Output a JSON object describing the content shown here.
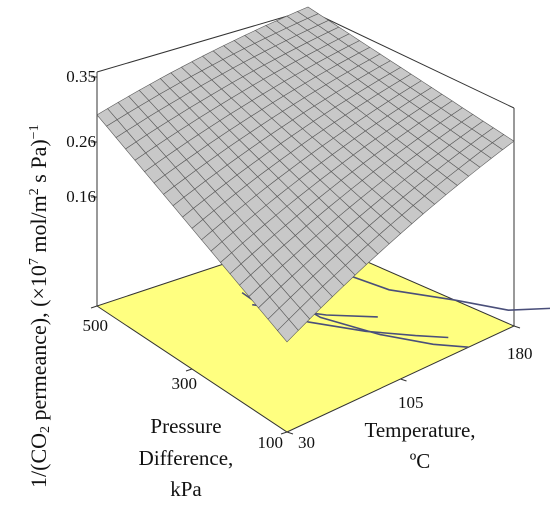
{
  "chart_data": {
    "type": "surface3d",
    "title": "",
    "axes": {
      "z": {
        "label_parts": [
          "1/(CO",
          "2",
          " permeance), (×10",
          "7",
          " mol/m",
          "2",
          " s Pa)",
          "−1"
        ],
        "ticks": [
          "0.16",
          "0.26",
          "0.35"
        ],
        "tick_values": [
          0.16,
          0.26,
          0.35
        ]
      },
      "pressure": {
        "label_lines": [
          "Pressure",
          "Difference,",
          "kPa"
        ],
        "ticks": [
          "100",
          "300",
          "500"
        ],
        "range": [
          100,
          500
        ]
      },
      "temperature": {
        "label_lines": [
          "Temperature,",
          "ºC"
        ],
        "ticks": [
          "30",
          "105",
          "180"
        ],
        "range": [
          30,
          180
        ]
      }
    },
    "surface_corners": [
      {
        "pressure": 500,
        "temperature": 30,
        "value": 0.29
      },
      {
        "pressure": 500,
        "temperature": 180,
        "value": 0.35
      },
      {
        "pressure": 100,
        "temperature": 180,
        "value": 0.28
      },
      {
        "pressure": 100,
        "temperature": 30,
        "value": 0.13
      }
    ],
    "colors": {
      "surface_fill": "#c8c8c8",
      "surface_mesh": "#5a5a5a",
      "floor_fill": "#ffff80",
      "contour_lines": "#4a4f7a",
      "frame": "#333333"
    }
  }
}
